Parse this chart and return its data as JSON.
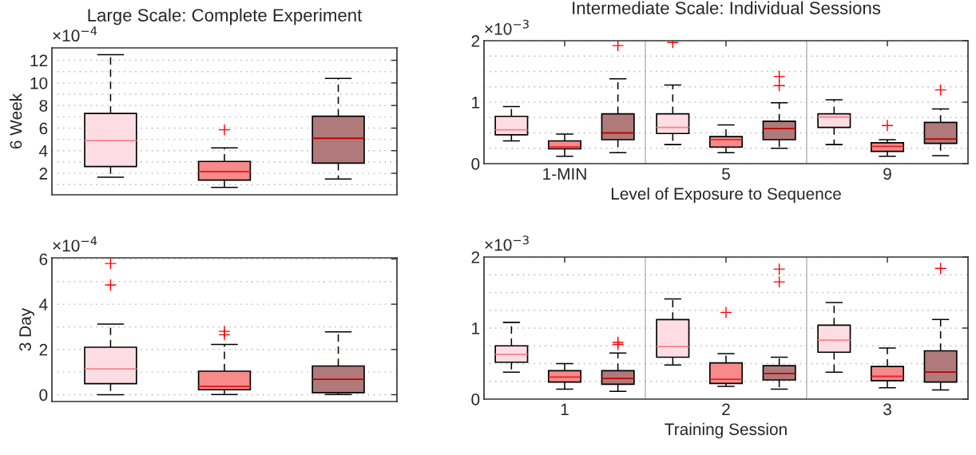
{
  "chart_data": [
    {
      "type": "box",
      "title": "Large Scale: Complete Experiment",
      "ylabel": "6 Week",
      "annotations": [
        "×10$^{−4}$"
      ],
      "categories": [
        null
      ],
      "ylim": [
        0.1,
        13.1
      ],
      "yticks": [
        {
          "value": 1,
          "label": null
        },
        2,
        {
          "value": 3,
          "label": null
        },
        4,
        {
          "value": 5,
          "label": null
        },
        6,
        {
          "value": 7,
          "label": null
        },
        8,
        {
          "value": 9,
          "label": null
        },
        10,
        {
          "value": 11,
          "label": null
        },
        12
      ],
      "grid": "y",
      "series": [
        {
          "color": "#fddde3",
          "boxes": [
            {
              "low": 1.65,
              "q1": 2.6,
              "median": 4.9,
              "q3": 7.3,
              "high": 12.5
            }
          ]
        },
        {
          "color": "#f88a8a",
          "boxes": [
            {
              "low": 0.75,
              "q1": 1.4,
              "median": 2.15,
              "q3": 3.05,
              "high": 4.25,
              "outliers": [
                5.85
              ]
            }
          ]
        },
        {
          "color": "#b07a7a",
          "boxes": [
            {
              "low": 1.5,
              "q1": 2.9,
              "median": 5.1,
              "q3": 7.05,
              "high": 10.4
            }
          ]
        }
      ]
    },
    {
      "type": "box",
      "title": "Intermediate Scale: Individual Sessions",
      "xlabel": "Level of Exposure to Sequence",
      "annotations": [
        "×10$^{−3}$"
      ],
      "categories": [
        "1-MIN",
        "5",
        "9"
      ],
      "ylim": [
        0,
        2
      ],
      "yticks": [
        0,
        {
          "value": 0.25,
          "label": null
        },
        {
          "value": 0.5,
          "label": null
        },
        {
          "value": 0.75,
          "label": null
        },
        1,
        {
          "value": 1.25,
          "label": null
        },
        {
          "value": 1.5,
          "label": null
        },
        {
          "value": 1.75,
          "label": null
        },
        2
      ],
      "grid": "y",
      "series": [
        {
          "color": "#fddde3",
          "boxes": [
            {
              "low": 0.37,
              "q1": 0.47,
              "median": 0.55,
              "q3": 0.77,
              "high": 0.93
            },
            {
              "low": 0.31,
              "q1": 0.49,
              "median": 0.59,
              "q3": 0.81,
              "high": 1.28,
              "outliers": [
                1.97
              ]
            },
            {
              "low": 0.31,
              "q1": 0.59,
              "median": 0.76,
              "q3": 0.81,
              "high": 1.04
            }
          ]
        },
        {
          "color": "#f88a8a",
          "boxes": [
            {
              "low": 0.12,
              "q1": 0.24,
              "median": 0.27,
              "q3": 0.37,
              "high": 0.48
            },
            {
              "low": 0.18,
              "q1": 0.27,
              "median": 0.39,
              "q3": 0.44,
              "high": 0.63
            },
            {
              "low": 0.12,
              "q1": 0.2,
              "median": 0.28,
              "q3": 0.34,
              "high": 0.39,
              "outliers": [
                0.62
              ]
            }
          ]
        },
        {
          "color": "#b07a7a",
          "boxes": [
            {
              "low": 0.18,
              "q1": 0.39,
              "median": 0.5,
              "q3": 0.81,
              "high": 1.38,
              "outliers": [
                1.92
              ]
            },
            {
              "low": 0.25,
              "q1": 0.39,
              "median": 0.57,
              "q3": 0.69,
              "high": 0.99,
              "outliers": [
                1.27,
                1.42
              ]
            },
            {
              "low": 0.13,
              "q1": 0.33,
              "median": 0.4,
              "q3": 0.67,
              "high": 0.89,
              "outliers": [
                1.2
              ]
            }
          ]
        }
      ]
    },
    {
      "type": "box",
      "ylabel": "3 Day",
      "annotations": [
        "×10$^{−4}$"
      ],
      "categories": [
        null
      ],
      "ylim": [
        -0.3,
        6.05
      ],
      "yticks": [
        0,
        {
          "value": 1,
          "label": null
        },
        2,
        {
          "value": 3,
          "label": null
        },
        4,
        {
          "value": 5,
          "label": null
        },
        6
      ],
      "grid": "y",
      "series": [
        {
          "color": "#fddde3",
          "boxes": [
            {
              "low": 0,
              "q1": 0.49,
              "median": 1.14,
              "q3": 2.1,
              "high": 3.12,
              "outliers": [
                4.85,
                5.8
              ]
            }
          ]
        },
        {
          "color": "#f88a8a",
          "boxes": [
            {
              "low": 0.01,
              "q1": 0.22,
              "median": 0.37,
              "q3": 1.04,
              "high": 2.22,
              "outliers": [
                2.65,
                2.8
              ]
            }
          ]
        },
        {
          "color": "#b07a7a",
          "boxes": [
            {
              "low": 0.01,
              "q1": 0.09,
              "median": 0.68,
              "q3": 1.27,
              "high": 2.78
            }
          ]
        }
      ]
    },
    {
      "type": "box",
      "xlabel": "Training Session",
      "annotations": [
        "×10$^{−3}$"
      ],
      "categories": [
        "1",
        "2",
        "3"
      ],
      "ylim": [
        0,
        2
      ],
      "yticks": [
        0,
        {
          "value": 0.25,
          "label": null
        },
        {
          "value": 0.5,
          "label": null
        },
        {
          "value": 0.75,
          "label": null
        },
        1,
        {
          "value": 1.25,
          "label": null
        },
        {
          "value": 1.5,
          "label": null
        },
        {
          "value": 1.75,
          "label": null
        },
        2
      ],
      "grid": "y",
      "series": [
        {
          "color": "#fddde3",
          "boxes": [
            {
              "low": 0.38,
              "q1": 0.52,
              "median": 0.63,
              "q3": 0.75,
              "high": 1.08
            },
            {
              "low": 0.48,
              "q1": 0.59,
              "median": 0.74,
              "q3": 1.12,
              "high": 1.41
            },
            {
              "low": 0.38,
              "q1": 0.66,
              "median": 0.83,
              "q3": 1.04,
              "high": 1.36
            }
          ]
        },
        {
          "color": "#f88a8a",
          "boxes": [
            {
              "low": 0.14,
              "q1": 0.24,
              "median": 0.31,
              "q3": 0.4,
              "high": 0.5
            },
            {
              "low": 0.18,
              "q1": 0.22,
              "median": 0.28,
              "q3": 0.51,
              "high": 0.64,
              "outliers": [
                1.22
              ]
            },
            {
              "low": 0.16,
              "q1": 0.26,
              "median": 0.32,
              "q3": 0.46,
              "high": 0.72
            }
          ]
        },
        {
          "color": "#b07a7a",
          "boxes": [
            {
              "low": 0.11,
              "q1": 0.21,
              "median": 0.29,
              "q3": 0.4,
              "high": 0.65,
              "outliers": [
                0.77,
                0.8
              ]
            },
            {
              "low": 0.14,
              "q1": 0.27,
              "median": 0.36,
              "q3": 0.47,
              "high": 0.59,
              "outliers": [
                1.65,
                1.83
              ]
            },
            {
              "low": 0.13,
              "q1": 0.24,
              "median": 0.38,
              "q3": 0.68,
              "high": 1.12,
              "outliers": [
                1.84
              ]
            }
          ]
        }
      ]
    }
  ]
}
